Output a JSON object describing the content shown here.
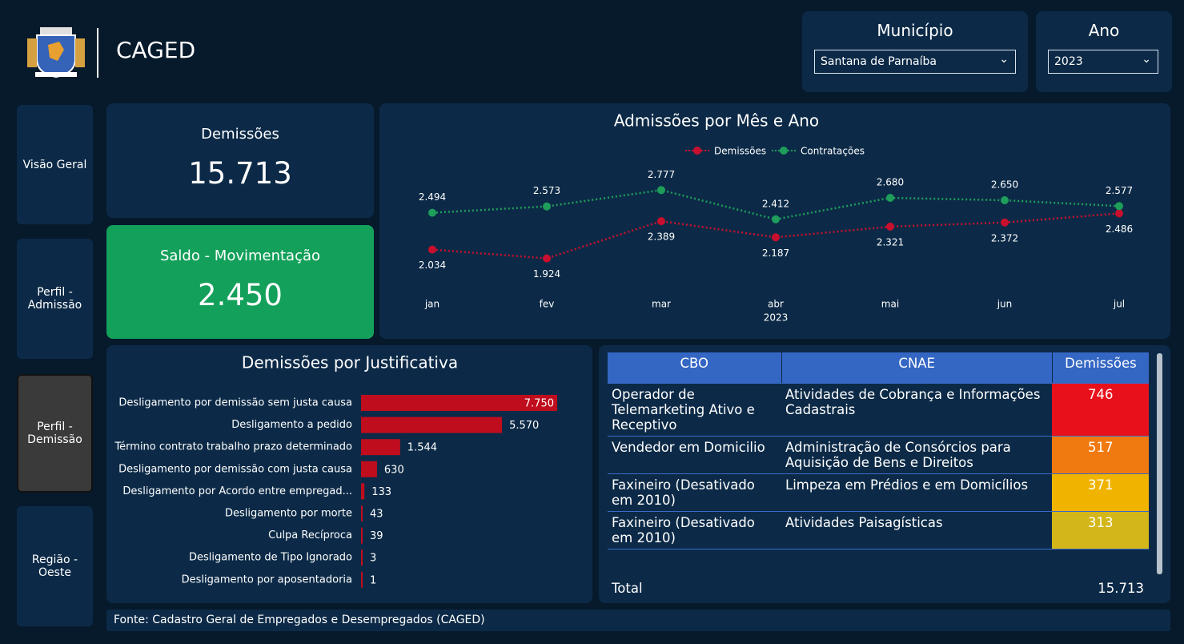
{
  "header": {
    "title": "CAGED"
  },
  "filters": [
    {
      "label": "Município",
      "value": "Santana de Parnaíba"
    },
    {
      "label": "Ano",
      "value": "2023"
    }
  ],
  "nav": [
    "Visão Geral",
    "Perfil - Admissão",
    "Perfil - Demissão",
    "Região - Oeste"
  ],
  "cards": [
    {
      "label": "Demissões",
      "value": "15.713"
    },
    {
      "label": "Saldo - Movimentação",
      "value": "2.450"
    }
  ],
  "line_chart": {
    "type": "line",
    "title": "Admissões por Mês e Ano",
    "categories": [
      "jan",
      "fev",
      "mar",
      "abr",
      "mai",
      "jun",
      "jul"
    ],
    "x_label": "2023",
    "ylim": [
      1600,
      3000
    ],
    "series": [
      {
        "name": "Demissões",
        "color": "#c8102e",
        "values": [
          2034,
          1924,
          2389,
          2187,
          2321,
          2372,
          2486
        ],
        "value_labels": [
          "2.034",
          "1.924",
          "2.389",
          "2.187",
          "2.321",
          "2.372",
          "2.486"
        ]
      },
      {
        "name": "Contratações",
        "color": "#1e9e5a",
        "values": [
          2494,
          2573,
          2777,
          2412,
          2680,
          2650,
          2577
        ],
        "value_labels": [
          "2.494",
          "2.573",
          "2.777",
          "2.412",
          "2.680",
          "2.650",
          "2.577"
        ]
      }
    ]
  },
  "bar_chart": {
    "type": "bar",
    "title": "Demissões por Justificativa",
    "color": "#c00d1e",
    "xlim": [
      0,
      7750
    ],
    "categories": [
      "Desligamento por demissão sem justa causa",
      "Desligamento a pedido",
      "Término contrato trabalho prazo determinado",
      "Desligamento por demissão com justa causa",
      "Desligamento por Acordo entre empregad...",
      "Desligamento por morte",
      "Culpa Recíproca",
      "Desligamento de Tipo Ignorado",
      "Desligamento por aposentadoria"
    ],
    "values": [
      7750,
      5570,
      1544,
      630,
      133,
      43,
      39,
      3,
      1
    ],
    "value_labels": [
      "7.750",
      "5.570",
      "1.544",
      "630",
      "133",
      "43",
      "39",
      "3",
      "1"
    ]
  },
  "table": {
    "columns": [
      "CBO",
      "CNAE",
      "Demissões"
    ],
    "rows": [
      [
        "Operador de Telemarketing Ativo e Receptivo",
        "Atividades de Cobrança e Informações Cadastrais",
        "746"
      ],
      [
        "Vendedor em Domicilio",
        "Administração de Consórcios para Aquisição de Bens e Direitos",
        "517"
      ],
      [
        "Faxineiro (Desativado em 2010)",
        "Limpeza em Prédios e em Domicílios",
        "371"
      ],
      [
        "Faxineiro (Desativado em 2010)",
        "Atividades Paisagísticas",
        "313"
      ]
    ],
    "row_colors": [
      "#e8101a",
      "#f07a10",
      "#f0b400",
      "#d2b61a"
    ],
    "total": [
      "Total",
      "15.713"
    ]
  },
  "footer": "Fonte: Cadastro Geral de Empregados e Desempregados (CAGED)"
}
